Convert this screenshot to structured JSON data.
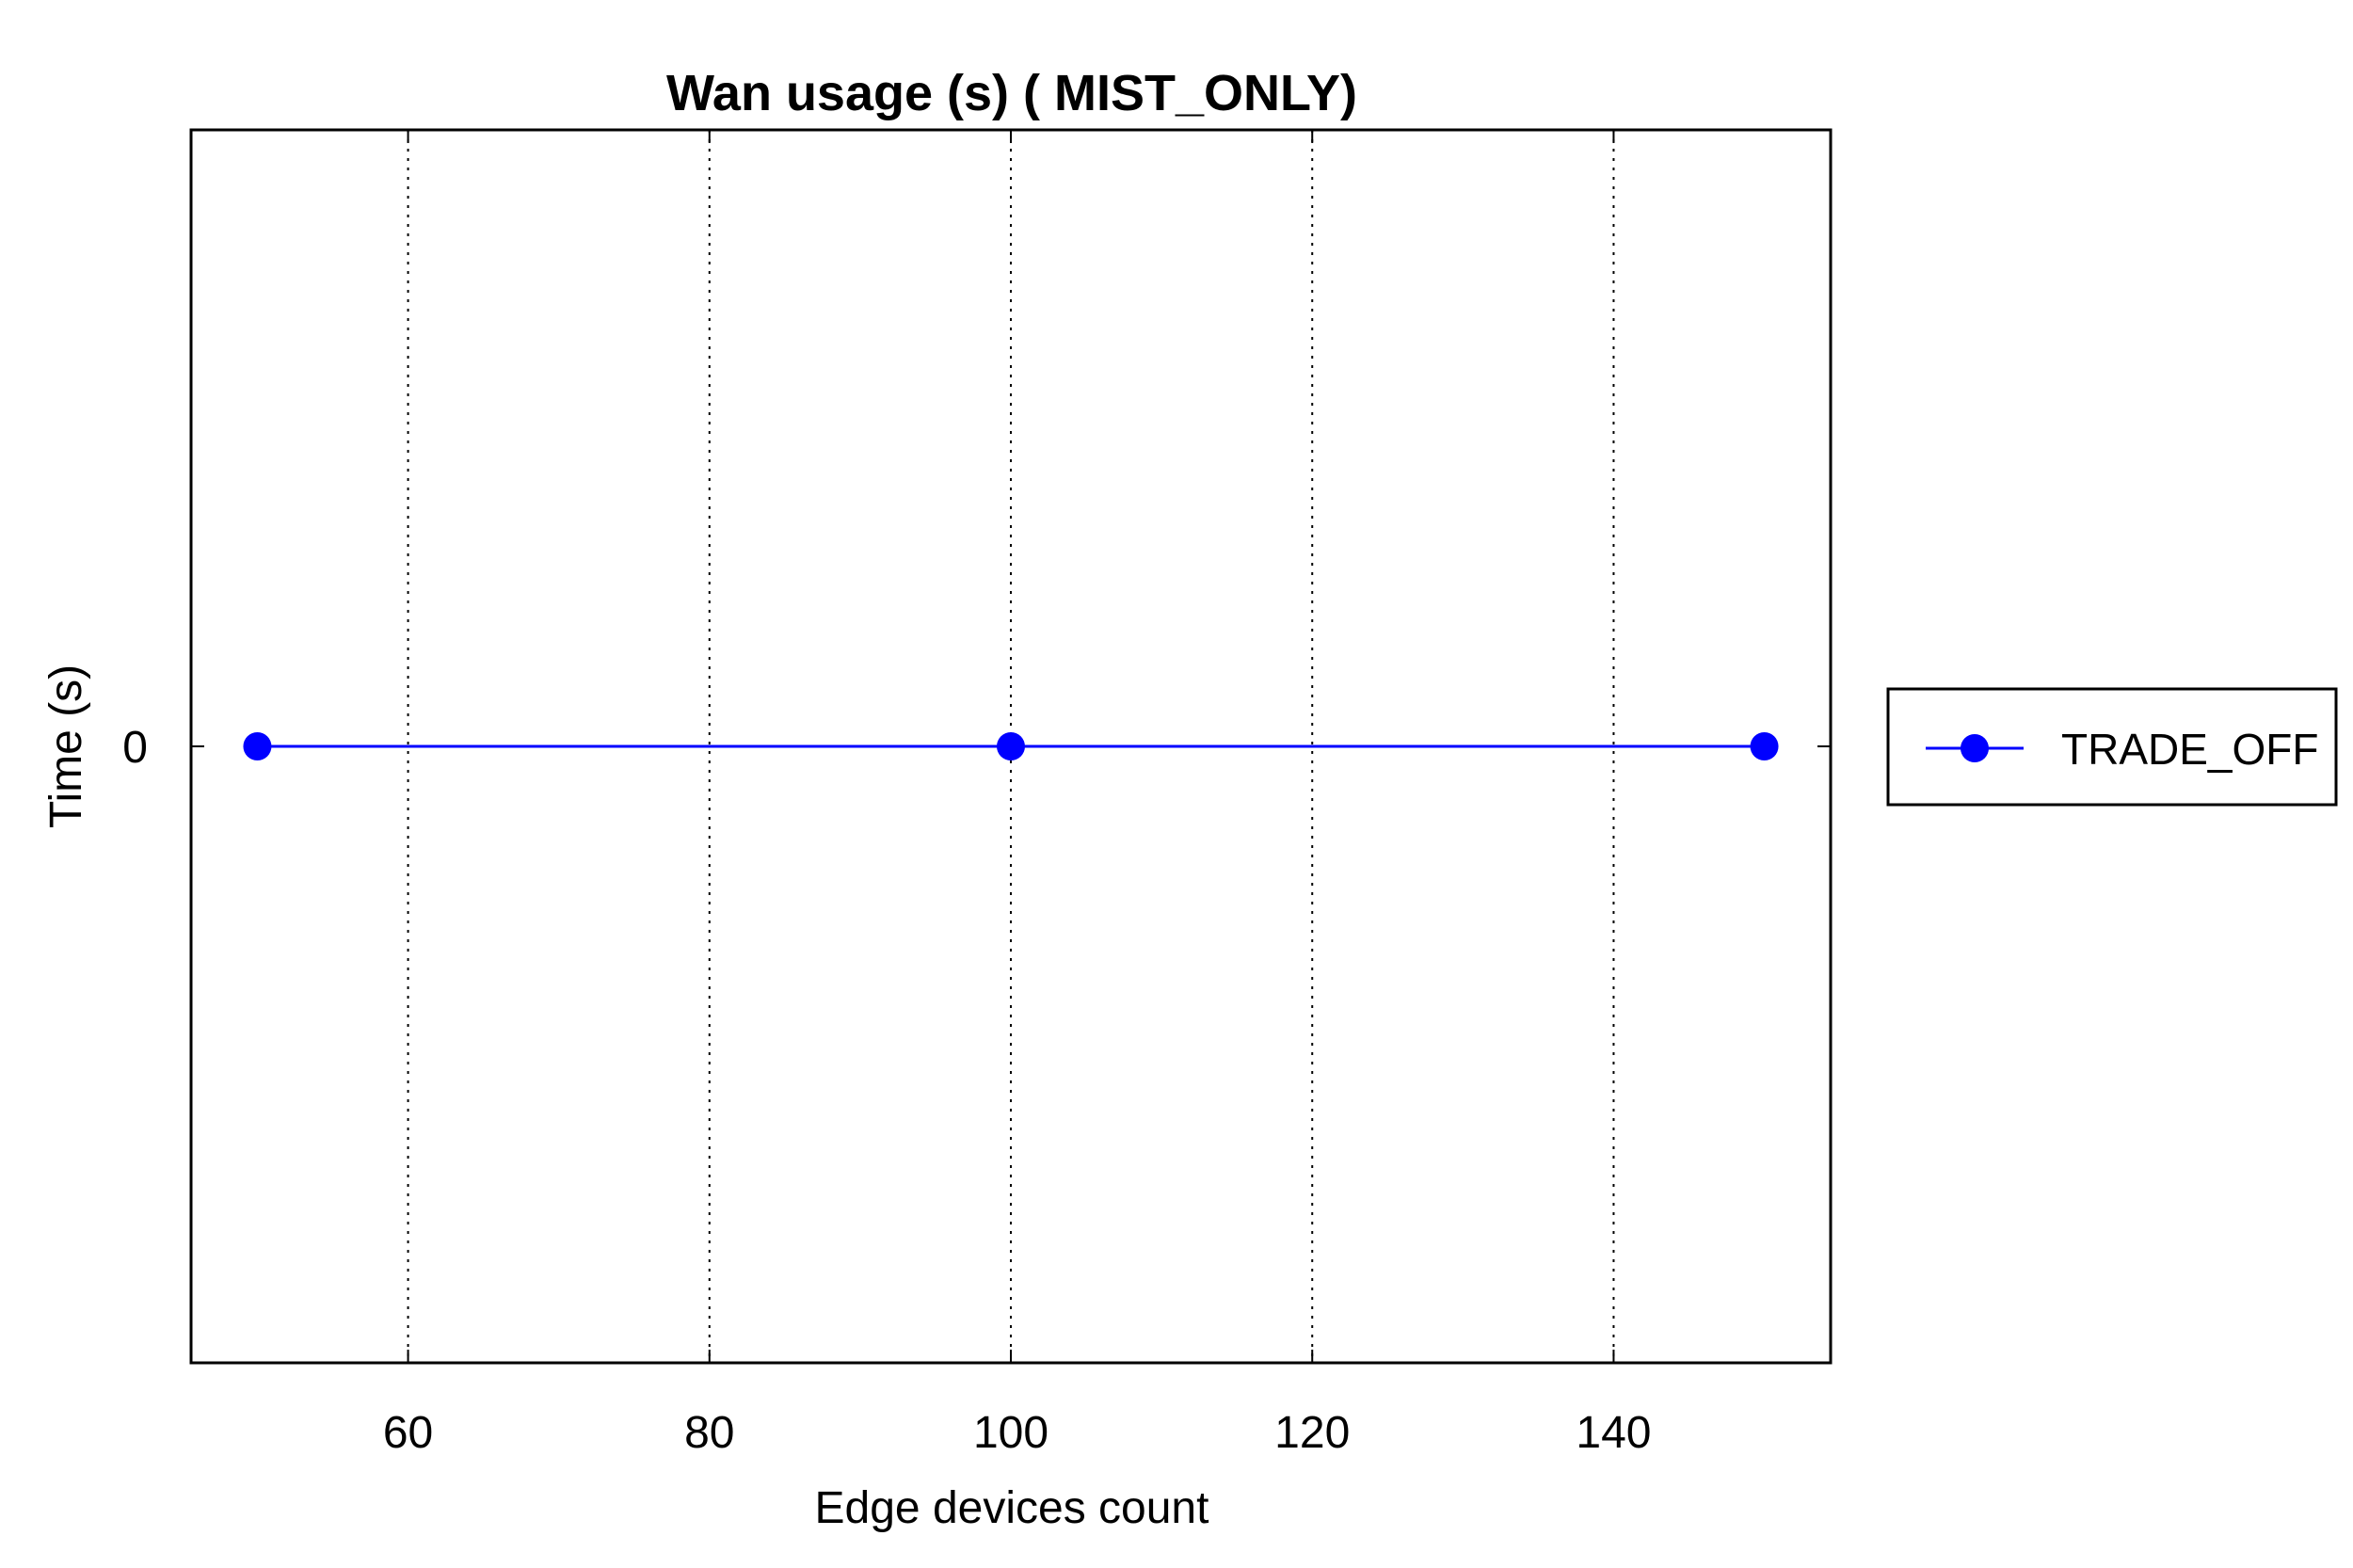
{
  "chart_data": {
    "type": "line",
    "title": "Wan usage (s) ( MIST_ONLY)",
    "xlabel": "Edge devices count",
    "ylabel": "Time (s)",
    "xlim": [
      45.6,
      154.4
    ],
    "ylim": [
      -1,
      1
    ],
    "xticks": [
      60,
      80,
      100,
      120,
      140
    ],
    "yticks": [
      0
    ],
    "grid": "vertical dotted",
    "legend_position": "outside-right",
    "series": [
      {
        "name": "TRADE_OFF",
        "color": "#0000ff",
        "marker": "circle",
        "x": [
          50,
          100,
          150
        ],
        "y": [
          0,
          0,
          0
        ]
      }
    ]
  }
}
